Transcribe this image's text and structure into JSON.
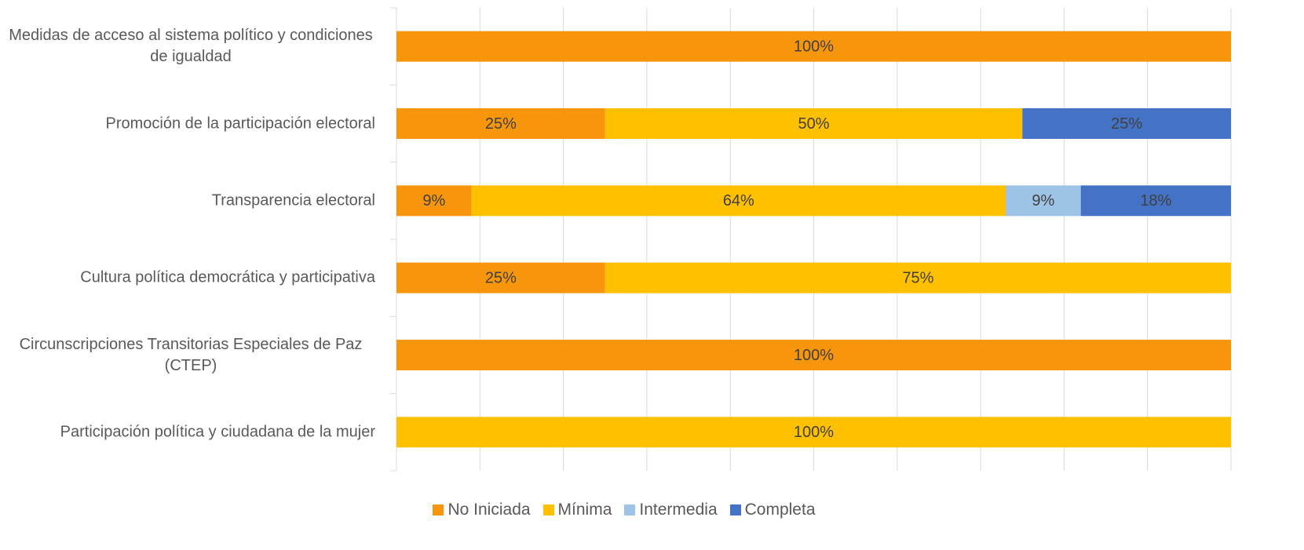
{
  "chart_data": {
    "type": "bar",
    "orientation": "horizontal",
    "stacked": true,
    "categories": [
      "Medidas de acceso al sistema político y condiciones de igualdad",
      "Promoción de la participación electoral",
      "Transparencia electoral",
      "Cultura política democrática y participativa",
      "Circunscripciones Transitorias Especiales de Paz (CTEP)",
      "Participación política y ciudadana de la mujer"
    ],
    "series": [
      {
        "name": "No Iniciada",
        "color": "#f7960c",
        "values": [
          100,
          25,
          9,
          25,
          100,
          null
        ],
        "value_labels": [
          "100%",
          "25%",
          "9%",
          "25%",
          "100%",
          null
        ]
      },
      {
        "name": "Mínima",
        "color": "#ffc000",
        "values": [
          null,
          50,
          64,
          75,
          null,
          100
        ],
        "value_labels": [
          null,
          "50%",
          "64%",
          "75%",
          null,
          "100%"
        ]
      },
      {
        "name": "Intermedia",
        "color": "#9dc3e6",
        "values": [
          null,
          null,
          9,
          null,
          null,
          null
        ],
        "value_labels": [
          null,
          null,
          "9%",
          null,
          null,
          null
        ]
      },
      {
        "name": "Completa",
        "color": "#4472c4",
        "values": [
          null,
          25,
          18,
          null,
          null,
          null
        ],
        "value_labels": [
          null,
          "25%",
          "18%",
          null,
          null,
          null
        ]
      }
    ],
    "xlim": [
      0,
      100
    ],
    "xticks": [
      0,
      10,
      20,
      30,
      40,
      50,
      60,
      70,
      80,
      90,
      100
    ],
    "grid": true,
    "legend": "bottom"
  }
}
